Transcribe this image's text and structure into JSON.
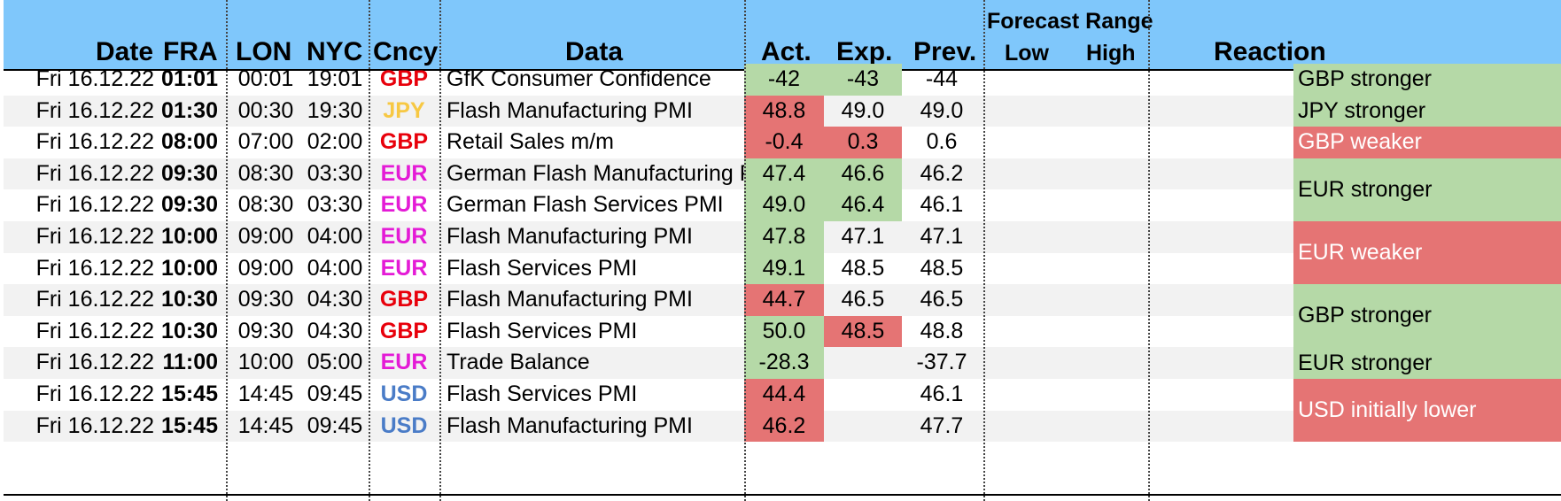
{
  "headers": {
    "date": "Date",
    "fra": "FRA",
    "lon": "LON",
    "nyc": "NYC",
    "cncy": "Cncy",
    "data": "Data",
    "act": "Act.",
    "exp": "Exp.",
    "prev": "Prev.",
    "forecast_range": "Forecast Range",
    "low": "Low",
    "high": "High",
    "reaction": "Reaction"
  },
  "colors": {
    "header_bg": "#7fc7fb",
    "positive": "#b5d9a7",
    "negative": "#e57474",
    "GBP": "#e8000b",
    "JPY": "#f7c843",
    "EUR": "#e41bd6",
    "USD": "#4a7cc7"
  },
  "rows": [
    {
      "date": "Fri 16.12.22",
      "fra": "01:01",
      "lon": "00:01",
      "nyc": "19:01",
      "cncy": "GBP",
      "data": "GfK Consumer Confidence",
      "act": "-42",
      "exp": "-43",
      "prev": "-44",
      "act_status": "green",
      "exp_status": "green"
    },
    {
      "date": "Fri 16.12.22",
      "fra": "01:30",
      "lon": "00:30",
      "nyc": "19:30",
      "cncy": "JPY",
      "data": "Flash Manufacturing PMI",
      "act": "48.8",
      "exp": "49.0",
      "prev": "49.0",
      "act_status": "red",
      "exp_status": ""
    },
    {
      "date": "Fri 16.12.22",
      "fra": "08:00",
      "lon": "07:00",
      "nyc": "02:00",
      "cncy": "GBP",
      "data": "Retail Sales m/m",
      "act": "-0.4",
      "exp": "0.3",
      "prev": "0.6",
      "act_status": "red",
      "exp_status": "red"
    },
    {
      "date": "Fri 16.12.22",
      "fra": "09:30",
      "lon": "08:30",
      "nyc": "03:30",
      "cncy": "EUR",
      "data": "German Flash Manufacturing PMI",
      "act": "47.4",
      "exp": "46.6",
      "prev": "46.2",
      "act_status": "green",
      "exp_status": "green"
    },
    {
      "date": "Fri 16.12.22",
      "fra": "09:30",
      "lon": "08:30",
      "nyc": "03:30",
      "cncy": "EUR",
      "data": "German Flash Services PMI",
      "act": "49.0",
      "exp": "46.4",
      "prev": "46.1",
      "act_status": "green",
      "exp_status": "green"
    },
    {
      "date": "Fri 16.12.22",
      "fra": "10:00",
      "lon": "09:00",
      "nyc": "04:00",
      "cncy": "EUR",
      "data": "Flash Manufacturing PMI",
      "act": "47.8",
      "exp": "47.1",
      "prev": "47.1",
      "act_status": "green",
      "exp_status": ""
    },
    {
      "date": "Fri 16.12.22",
      "fra": "10:00",
      "lon": "09:00",
      "nyc": "04:00",
      "cncy": "EUR",
      "data": "Flash Services PMI",
      "act": "49.1",
      "exp": "48.5",
      "prev": "48.5",
      "act_status": "green",
      "exp_status": ""
    },
    {
      "date": "Fri 16.12.22",
      "fra": "10:30",
      "lon": "09:30",
      "nyc": "04:30",
      "cncy": "GBP",
      "data": "Flash Manufacturing PMI",
      "act": "44.7",
      "exp": "46.5",
      "prev": "46.5",
      "act_status": "red",
      "exp_status": ""
    },
    {
      "date": "Fri 16.12.22",
      "fra": "10:30",
      "lon": "09:30",
      "nyc": "04:30",
      "cncy": "GBP",
      "data": "Flash Services PMI",
      "act": "50.0",
      "exp": "48.5",
      "prev": "48.8",
      "act_status": "green",
      "exp_status": "red"
    },
    {
      "date": "Fri 16.12.22",
      "fra": "11:00",
      "lon": "10:00",
      "nyc": "05:00",
      "cncy": "EUR",
      "data": "Trade Balance",
      "act": "-28.3",
      "exp": "",
      "prev": "-37.7",
      "act_status": "green",
      "exp_status": ""
    },
    {
      "date": "Fri 16.12.22",
      "fra": "15:45",
      "lon": "14:45",
      "nyc": "09:45",
      "cncy": "USD",
      "data": "Flash Services PMI",
      "act": "44.4",
      "exp": "",
      "prev": "46.1",
      "act_status": "red",
      "exp_status": ""
    },
    {
      "date": "Fri 16.12.22",
      "fra": "15:45",
      "lon": "14:45",
      "nyc": "09:45",
      "cncy": "USD",
      "data": "Flash Manufacturing PMI",
      "act": "46.2",
      "exp": "",
      "prev": "47.7",
      "act_status": "red",
      "exp_status": ""
    }
  ],
  "reactions": [
    {
      "text": "GBP stronger",
      "status": "green"
    },
    {
      "text": "JPY stronger",
      "status": "green"
    },
    {
      "text": "GBP weaker",
      "status": "red"
    },
    {
      "text": "EUR stronger",
      "status": "green"
    },
    {
      "text": "EUR weaker",
      "status": "red"
    },
    {
      "text": "GBP stronger",
      "status": "green"
    },
    {
      "text": "EUR stronger",
      "status": "green"
    },
    {
      "text": "USD initially lower",
      "status": "red"
    }
  ]
}
